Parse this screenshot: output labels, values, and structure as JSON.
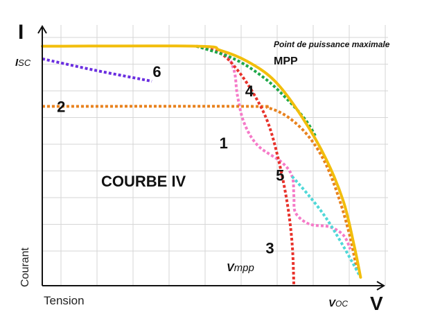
{
  "chart_data": {
    "type": "line",
    "title": "COURBE IV",
    "y_axis_letter": "I",
    "x_axis_letter": "V",
    "ylabel": "Courant",
    "xlabel": "Tension",
    "isc_label": {
      "main": "I",
      "sub": "SC"
    },
    "voc_label": {
      "main": "V",
      "sub": "OC"
    },
    "vmpp_label": {
      "main": "V",
      "sub": "mpp"
    },
    "mpp_note": "Point de puissance maximale",
    "mpp_label": "MPP",
    "xlim": [
      0,
      1
    ],
    "ylim": [
      0,
      1
    ],
    "grid": true,
    "series": [
      {
        "id": "reference",
        "color": "#F2BE0C",
        "dashed": false,
        "points": [
          [
            0,
            0.855
          ],
          [
            0.45,
            0.855
          ],
          [
            0.52,
            0.84
          ],
          [
            0.6,
            0.8
          ],
          [
            0.68,
            0.73
          ],
          [
            0.76,
            0.6
          ],
          [
            0.83,
            0.45
          ],
          [
            0.88,
            0.3
          ],
          [
            0.91,
            0.15
          ],
          [
            0.93,
            0.03
          ]
        ]
      },
      {
        "id": "curve-1",
        "name": "1",
        "color": "#F57AC8",
        "dashed": true,
        "points": [
          [
            0.45,
            0.855
          ],
          [
            0.53,
            0.83
          ],
          [
            0.56,
            0.77
          ],
          [
            0.57,
            0.68
          ],
          [
            0.59,
            0.58
          ],
          [
            0.63,
            0.5
          ],
          [
            0.7,
            0.44
          ],
          [
            0.73,
            0.39
          ],
          [
            0.735,
            0.32
          ],
          [
            0.74,
            0.26
          ],
          [
            0.78,
            0.22
          ],
          [
            0.84,
            0.21
          ],
          [
            0.88,
            0.18
          ],
          [
            0.9,
            0.13
          ]
        ]
      },
      {
        "id": "curve-2",
        "name": "2",
        "color": "#E8821E",
        "dashed": true,
        "points": [
          [
            0,
            0.64
          ],
          [
            0.6,
            0.64
          ],
          [
            0.66,
            0.635
          ],
          [
            0.72,
            0.6
          ],
          [
            0.78,
            0.53
          ],
          [
            0.83,
            0.43
          ],
          [
            0.87,
            0.3
          ],
          [
            0.9,
            0.17
          ],
          [
            0.92,
            0.05
          ]
        ]
      },
      {
        "id": "curve-3",
        "name": "3",
        "color": "#E8322B",
        "dashed": true,
        "points": [
          [
            0.45,
            0.855
          ],
          [
            0.52,
            0.83
          ],
          [
            0.57,
            0.77
          ],
          [
            0.62,
            0.68
          ],
          [
            0.66,
            0.58
          ],
          [
            0.69,
            0.45
          ],
          [
            0.715,
            0.3
          ],
          [
            0.73,
            0.15
          ],
          [
            0.735,
            0.0
          ]
        ]
      },
      {
        "id": "curve-4",
        "name": "4",
        "color": "#1FA84A",
        "dashed": true,
        "points": [
          [
            0.45,
            0.855
          ],
          [
            0.56,
            0.81
          ],
          [
            0.65,
            0.74
          ],
          [
            0.72,
            0.66
          ],
          [
            0.77,
            0.59
          ],
          [
            0.8,
            0.53
          ]
        ]
      },
      {
        "id": "curve-5",
        "name": "5",
        "color": "#4FD8D8",
        "dashed": true,
        "points": [
          [
            0.73,
            0.39
          ],
          [
            0.78,
            0.32
          ],
          [
            0.83,
            0.24
          ],
          [
            0.88,
            0.14
          ],
          [
            0.93,
            0.03
          ]
        ]
      },
      {
        "id": "curve-6",
        "name": "6",
        "color": "#6A2EE0",
        "dashed": true,
        "points": [
          [
            0,
            0.81
          ],
          [
            0.15,
            0.77
          ],
          [
            0.32,
            0.73
          ]
        ]
      }
    ],
    "curve_labels": [
      {
        "text": "1",
        "x": 0.53,
        "y": 0.51
      },
      {
        "text": "2",
        "x": 0.055,
        "y": 0.64
      },
      {
        "text": "3",
        "x": 0.665,
        "y": 0.135
      },
      {
        "text": "4",
        "x": 0.605,
        "y": 0.695
      },
      {
        "text": "5",
        "x": 0.695,
        "y": 0.395
      },
      {
        "text": "6",
        "x": 0.335,
        "y": 0.765
      }
    ]
  }
}
